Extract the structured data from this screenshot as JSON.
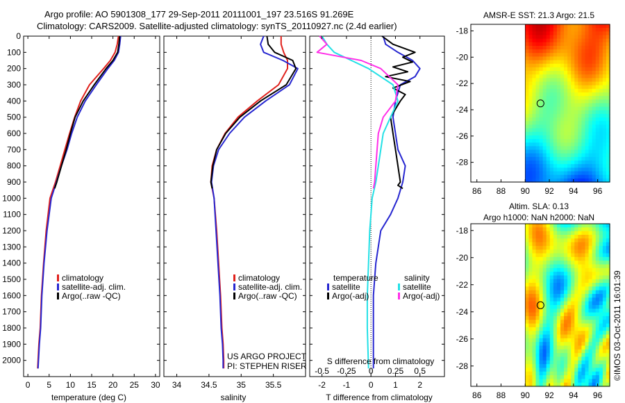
{
  "figure": {
    "title_line1": "Argo profile: AO 5901308_177 29-Sep-2011 20111001_197 23.516S 91.269E",
    "title_line2": "Climatology: CARS2009. Satellite-adjusted climatology: synTS_20110927.nc (2.4d earlier)",
    "footer_credit": "©IMOS 03-Oct-2011 16:01:39",
    "project_label": "US ARGO PROJECT",
    "pi_label": "PI: STEPHEN RISER"
  },
  "colors": {
    "climatology": "#e0201b",
    "satellite": "#2626d0",
    "argo": "#000000",
    "sal_satellite": "#22e0e6",
    "sal_argo": "#ff2ee8"
  },
  "chart_data": [
    {
      "id": "temperature",
      "type": "line",
      "xlabel": "temperature (deg C)",
      "ylabel": "",
      "xlim": [
        -1,
        31
      ],
      "ylim": [
        2100,
        0
      ],
      "xticks": [
        0,
        5,
        10,
        15,
        20,
        25,
        30
      ],
      "yticks": [
        0,
        100,
        200,
        300,
        400,
        500,
        600,
        700,
        800,
        900,
        1000,
        1100,
        1200,
        1300,
        1400,
        1500,
        1600,
        1700,
        1800,
        1900,
        2000
      ],
      "legend": [
        "climatology",
        "satellite-adj. clim.",
        "Argo(..raw -QC)"
      ],
      "series": [
        {
          "name": "climatology",
          "color": "#e0201b",
          "x": [
            21.3,
            21.0,
            20.5,
            19.4,
            17.8,
            14.5,
            12.4,
            11.0,
            9.8,
            8.7,
            7.6,
            6.5,
            5.2,
            4.3,
            3.7,
            3.2,
            2.9,
            2.6,
            2.4,
            2.3
          ],
          "y": [
            0,
            50,
            100,
            150,
            200,
            300,
            400,
            500,
            600,
            700,
            800,
            900,
            1000,
            1200,
            1400,
            1600,
            1800,
            1900,
            2000,
            2050
          ]
        },
        {
          "name": "satellite-adj. clim.",
          "color": "#2626d0",
          "x": [
            21.8,
            21.6,
            21.3,
            20.3,
            18.8,
            16.1,
            13.5,
            11.6,
            10.3,
            9.2,
            7.9,
            6.7,
            5.5,
            4.5,
            3.8,
            3.3,
            3.0,
            2.7,
            2.5,
            2.4
          ],
          "y": [
            0,
            50,
            100,
            150,
            200,
            300,
            400,
            500,
            600,
            700,
            800,
            900,
            1000,
            1200,
            1400,
            1600,
            1800,
            1900,
            2000,
            2050
          ]
        },
        {
          "name": "Argo(..raw -QC)",
          "color": "#000000",
          "x": [
            21.6,
            21.4,
            21.1,
            20.0,
            18.4,
            15.6,
            13.0,
            11.1,
            10.0,
            9.0,
            7.9,
            6.8,
            6.3
          ],
          "y": [
            0,
            50,
            100,
            150,
            200,
            300,
            400,
            500,
            600,
            700,
            800,
            900,
            940
          ]
        }
      ]
    },
    {
      "id": "salinity",
      "type": "line",
      "xlabel": "salinity",
      "ylabel": "",
      "xlim": [
        33.8,
        36.0
      ],
      "ylim": [
        2100,
        0
      ],
      "xticks": [
        34,
        34.5,
        35,
        35.5
      ],
      "xtick_labels": [
        "34",
        "34.5",
        "35",
        "35.5"
      ],
      "legend": [
        "climatology",
        "satellite-adj. clim.",
        "Argo(..raw -QC)"
      ],
      "series": [
        {
          "name": "climatology",
          "color": "#e0201b",
          "x": [
            35.62,
            35.62,
            35.66,
            35.72,
            35.72,
            35.58,
            35.25,
            34.95,
            34.75,
            34.62,
            34.55,
            34.53,
            34.58,
            34.62,
            34.65,
            34.68,
            34.7,
            34.72,
            34.73,
            34.73
          ],
          "y": [
            0,
            50,
            100,
            150,
            200,
            300,
            400,
            500,
            600,
            700,
            800,
            900,
            1000,
            1200,
            1400,
            1600,
            1800,
            1900,
            2000,
            2050
          ]
        },
        {
          "name": "satellite-adj. clim.",
          "color": "#2626d0",
          "x": [
            35.35,
            35.3,
            35.35,
            35.65,
            35.88,
            35.75,
            35.38,
            35.05,
            34.82,
            34.65,
            34.57,
            34.54,
            34.58,
            34.61,
            34.64,
            34.67,
            34.69,
            34.71,
            34.72,
            34.72
          ],
          "y": [
            0,
            50,
            100,
            150,
            200,
            300,
            400,
            500,
            600,
            700,
            800,
            900,
            1000,
            1200,
            1400,
            1600,
            1800,
            1900,
            2000,
            2050
          ]
        },
        {
          "name": "Argo(..raw -QC)",
          "color": "#000000",
          "x": [
            35.4,
            35.42,
            35.52,
            35.8,
            35.85,
            35.7,
            35.3,
            34.98,
            34.76,
            34.62,
            34.56,
            34.53,
            34.55
          ],
          "y": [
            0,
            50,
            100,
            150,
            200,
            300,
            400,
            500,
            600,
            700,
            800,
            900,
            940
          ]
        }
      ]
    },
    {
      "id": "difference",
      "type": "line",
      "xlabel": "T difference from climatology",
      "x2label": "S difference from climatology",
      "xlim": [
        -2.5,
        3.0
      ],
      "ylim": [
        2100,
        0
      ],
      "xticks_T": [
        -2,
        -1,
        0,
        1,
        2
      ],
      "xticks_S": [
        -0.5,
        -0.25,
        0,
        0.25,
        0.5
      ],
      "xticks_S_labels": [
        "-0.5",
        "-0.25",
        "0",
        "0.25",
        "0.5"
      ],
      "legend_titles": [
        "temperature",
        "salinity"
      ],
      "legend": [
        "satellite",
        "Argo(-adj)",
        "satellite",
        "Argo(-adj)"
      ],
      "series": [
        {
          "name": "T satellite",
          "color": "#2626d0",
          "x": [
            0.5,
            0.6,
            1.1,
            1.7,
            2.0,
            1.8,
            1.2,
            1.0,
            0.9,
            1.0,
            1.1,
            1.4,
            1.3,
            1.1,
            0.8,
            0.4,
            0.2,
            0.1,
            0.1,
            0.1
          ],
          "y": [
            0,
            50,
            100,
            150,
            200,
            250,
            300,
            400,
            500,
            600,
            700,
            800,
            900,
            1000,
            1100,
            1200,
            1400,
            1600,
            1800,
            2050
          ]
        },
        {
          "name": "T Argo(-adj)",
          "color": "#000000",
          "x": [
            0.45,
            0.9,
            1.8,
            1.3,
            1.7,
            0.9,
            1.5,
            0.6,
            1.6,
            0.9,
            1.4,
            1.2,
            0.8,
            0.9,
            1.0,
            1.1,
            1.2,
            1.1,
            1.3
          ],
          "y": [
            0,
            50,
            100,
            130,
            160,
            190,
            220,
            250,
            280,
            320,
            360,
            400,
            500,
            600,
            700,
            800,
            900,
            920,
            940
          ]
        },
        {
          "name": "S satellite",
          "color": "#22e0e6",
          "x": [
            -2.0,
            -1.8,
            -1.5,
            -0.8,
            -0.1,
            0.9,
            1.1,
            0.8,
            0.5,
            0.4,
            0.3,
            0.2,
            0.05,
            -0.05,
            -0.1,
            -0.15,
            -0.15,
            -0.1
          ],
          "y": [
            0,
            50,
            100,
            150,
            200,
            300,
            400,
            500,
            600,
            700,
            800,
            900,
            1000,
            1200,
            1400,
            1600,
            1800,
            2050
          ]
        },
        {
          "name": "S Argo(-adj)",
          "color": "#ff2ee8",
          "x": [
            -2.1,
            -1.8,
            -2.2,
            -0.4,
            0.4,
            1.1,
            1.0,
            0.5,
            0.3,
            0.25,
            0.2,
            0.15,
            0.1
          ],
          "y": [
            0,
            50,
            100,
            150,
            200,
            300,
            400,
            500,
            600,
            700,
            800,
            900,
            940
          ]
        }
      ]
    },
    {
      "id": "sst_map",
      "type": "heatmap",
      "title": "AMSR-E SST: 21.3 Argo: 21.5",
      "xlim": [
        85.5,
        97
      ],
      "ylim": [
        -29.5,
        -17.5
      ],
      "xticks": [
        86,
        88,
        90,
        92,
        94,
        96
      ],
      "yticks": [
        -18,
        -20,
        -22,
        -24,
        -26,
        -28
      ],
      "argo_location": [
        91.269,
        -23.516
      ]
    },
    {
      "id": "sla_map",
      "type": "heatmap",
      "title": "Altim. SLA: 0.13",
      "subtitle": "Argo h1000: NaN h2000: NaN",
      "xlim": [
        85.5,
        97
      ],
      "ylim": [
        -29.5,
        -17.5
      ],
      "xticks": [
        86,
        88,
        90,
        92,
        94,
        96
      ],
      "yticks": [
        -18,
        -20,
        -22,
        -24,
        -26,
        -28
      ],
      "argo_location": [
        91.269,
        -23.516
      ]
    }
  ]
}
